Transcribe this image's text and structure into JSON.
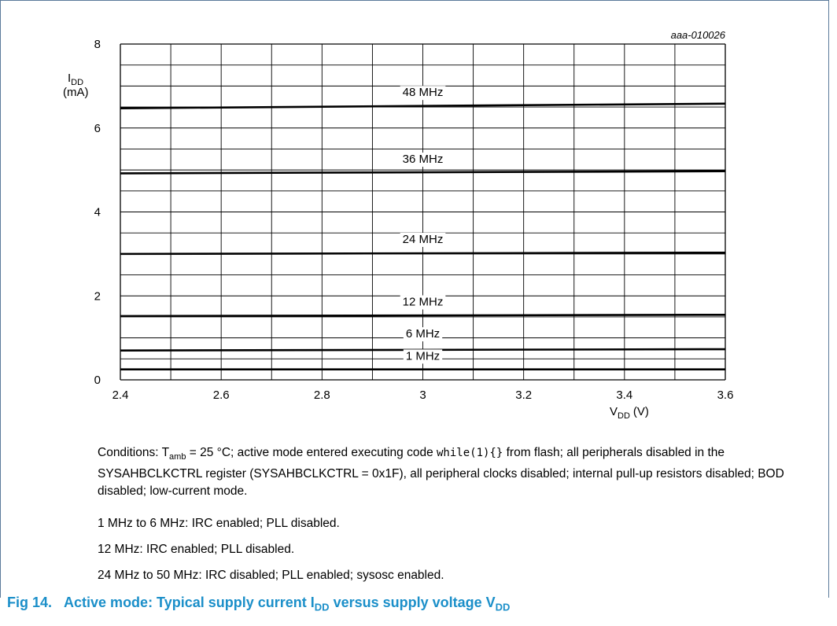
{
  "chart_data": {
    "type": "line",
    "code": "aaa-010026",
    "ylabel": {
      "main": "I",
      "sub": "DD",
      "unit": "(mA)"
    },
    "xlabel": {
      "main": "V",
      "sub": "DD",
      "unit": "(V)"
    },
    "xlim": [
      2.4,
      3.6
    ],
    "ylim": [
      0,
      8
    ],
    "x_ticks": [
      "2.4",
      "2.6",
      "2.8",
      "3",
      "3.2",
      "3.4",
      "3.6"
    ],
    "y_ticks": [
      "0",
      "2",
      "4",
      "6",
      "8"
    ],
    "grid": true,
    "x": [
      2.4,
      3.6
    ],
    "series": [
      {
        "name": "48 MHz",
        "values": [
          6.47,
          6.58
        ],
        "label_at": [
          3.0,
          6.76
        ]
      },
      {
        "name": "36 MHz",
        "values": [
          4.92,
          4.97
        ],
        "label_at": [
          3.0,
          5.17
        ]
      },
      {
        "name": "24 MHz",
        "values": [
          3.0,
          3.03
        ],
        "label_at": [
          3.0,
          3.26
        ]
      },
      {
        "name": "12 MHz",
        "values": [
          1.52,
          1.55
        ],
        "label_at": [
          3.0,
          1.77
        ]
      },
      {
        "name": "6 MHz",
        "values": [
          0.7,
          0.73
        ],
        "label_at": [
          3.0,
          1.01
        ]
      },
      {
        "name": "1 MHz",
        "values": [
          0.25,
          0.25
        ],
        "label_at": [
          3.0,
          0.48
        ]
      }
    ]
  },
  "notes": {
    "conditions": {
      "prefix": "Conditions: T",
      "sub": "amb",
      "mid": " = 25 °C; active mode entered executing code ",
      "code": "while(1){}",
      "rest": " from flash; all peripherals disabled in the SYSAHBCLKCTRL register (SYSAHBCLKCTRL = 0x1F), all peripheral clocks disabled; internal pull-up resistors disabled; BOD disabled; low-current mode."
    },
    "line1": "1 MHz to 6 MHz: IRC enabled; PLL disabled.",
    "line2": "12 MHz: IRC enabled; PLL disabled.",
    "line3": "24 MHz to 50 MHz: IRC disabled; PLL enabled; sysosc enabled."
  },
  "caption": {
    "prefix": "Fig 14.",
    "text1": "Active mode: Typical supply current I",
    "sub1": "DD",
    "text2": " versus supply voltage V",
    "sub2": "DD"
  },
  "colors": {
    "caption": "#1b8fc9",
    "frame": "#5b7a9a",
    "line": "#000000",
    "grid": "#000000"
  }
}
